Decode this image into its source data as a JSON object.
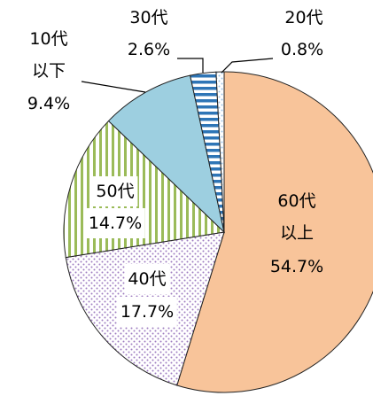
{
  "chart_data": {
    "type": "pie",
    "categories": [
      "60代\n以上",
      "40代",
      "50代",
      "10代\n以下",
      "30代",
      "20代"
    ],
    "values": [
      54.7,
      17.7,
      14.7,
      9.4,
      2.6,
      0.8
    ],
    "value_labels": [
      "54.7%",
      "17.7%",
      "14.7%",
      "9.4%",
      "2.6%",
      "0.8%"
    ],
    "colors": [
      "#F8C49A",
      "#9E7CC1",
      "#9BBB59",
      "#9DCFE0",
      "#2E75B6",
      "#9DC3E6"
    ],
    "patterns": [
      "solid",
      "dots",
      "vstripes",
      "solid",
      "hstripes",
      "dots"
    ]
  }
}
